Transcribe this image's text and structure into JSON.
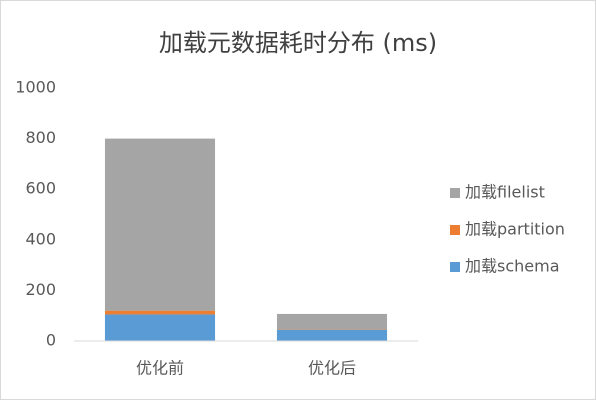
{
  "chart_data": {
    "type": "stacked-bar",
    "title": "加载元数据耗时分布 (ms)",
    "categories": [
      "优化前",
      "优化后"
    ],
    "series": [
      {
        "name": "加载schema",
        "color": "#5b9bd5",
        "values": [
          105,
          45
        ]
      },
      {
        "name": "加载partition",
        "color": "#ed7d31",
        "values": [
          15,
          2
        ]
      },
      {
        "name": "加载filelist",
        "color": "#a5a5a5",
        "values": [
          680,
          60
        ]
      }
    ],
    "ylim": [
      0,
      1000
    ],
    "yticks": [
      0,
      200,
      400,
      600,
      800,
      1000
    ],
    "grid": false,
    "legend": "right"
  }
}
